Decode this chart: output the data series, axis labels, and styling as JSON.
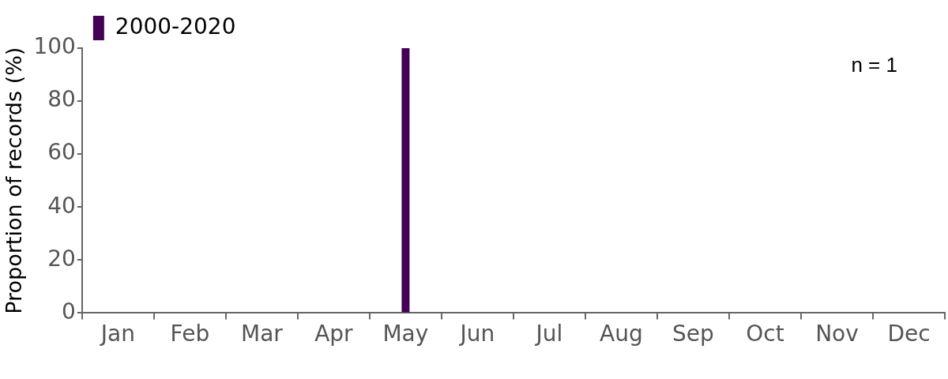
{
  "chart_data": {
    "type": "bar",
    "ylabel": "Proportion of records (%)",
    "annotations": [
      "n = 1"
    ],
    "legend": "top left",
    "grid": false,
    "categories": [
      "Jan",
      "Feb",
      "Mar",
      "Apr",
      "May",
      "Jun",
      "Jul",
      "Aug",
      "Sep",
      "Oct",
      "Nov",
      "Dec"
    ],
    "series": [
      {
        "name": "2000-2020",
        "color": "#440154",
        "values": [
          0,
          0,
          0,
          0,
          100,
          0,
          0,
          0,
          0,
          0,
          0,
          0
        ]
      }
    ],
    "ylim": [
      0,
      100
    ],
    "yticks": [
      0,
      20,
      40,
      60,
      80,
      100
    ]
  }
}
